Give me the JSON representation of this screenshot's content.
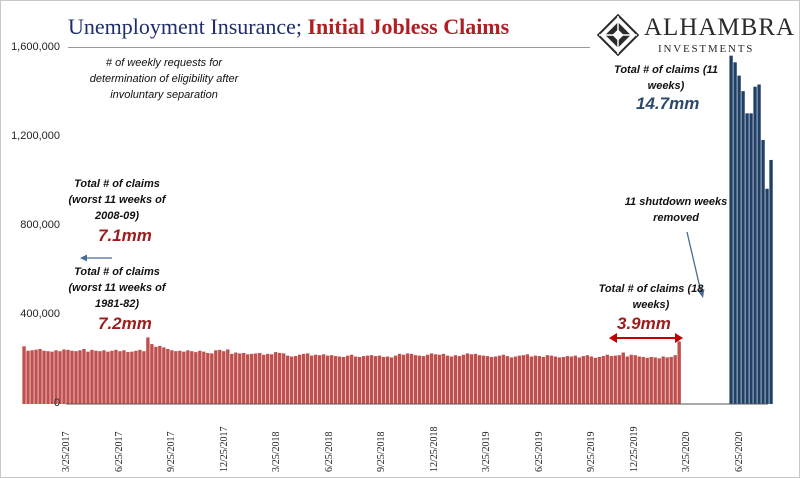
{
  "header": {
    "title_part1": "Unemployment Insurance; ",
    "title_part2": "Initial Jobless Claims",
    "logo_name": "ALHAMBRA",
    "logo_sub": "INVESTMENTS"
  },
  "annotations": {
    "description": "# of weekly requests for determination of eligibility after involuntary separation",
    "total_2008_label": "Total # of claims (worst 11 weeks of 2008-09)",
    "total_2008_value": "7.1mm",
    "total_1981_label": "Total # of claims (worst 11 weeks of 1981-82)",
    "total_1981_value": "7.2mm",
    "total_18w_label": "Total # of claims (18 weeks)",
    "total_18w_value": "3.9mm",
    "shutdown_removed": "11 shutdown weeks removed",
    "total_11w_label": "Total # of claims (11 weeks)",
    "total_11w_value": "14.7mm"
  },
  "colors": {
    "title_blue": "#1f2d6b",
    "title_red": "#b01f24",
    "bar_red": "#c0504d",
    "bar_blue": "#1f3f66",
    "annotation_red": "#9c1d1d",
    "annotation_blue": "#2b4a6e",
    "arrow_blue": "#4a6d96"
  },
  "chart_data": {
    "type": "bar",
    "ylim": [
      0,
      1600000
    ],
    "yticks": [
      {
        "v": 0,
        "label": "0"
      },
      {
        "v": 400000,
        "label": "400,000"
      },
      {
        "v": 800000,
        "label": "800,000"
      },
      {
        "v": 1200000,
        "label": "1,200,000"
      },
      {
        "v": 1600000,
        "label": "1,600,000"
      }
    ],
    "xticks": [
      "3/25/2017",
      "6/25/2017",
      "9/25/2017",
      "12/25/2017",
      "3/25/2018",
      "6/25/2018",
      "9/25/2018",
      "12/25/2018",
      "3/25/2019",
      "6/25/2019",
      "9/25/2019",
      "12/25/2019",
      "3/25/2020",
      "6/25/2020"
    ],
    "series": [
      {
        "color": "#c0504d",
        "start": "2017-01-07",
        "values": [
          260000,
          240000,
          242000,
          245000,
          248000,
          240000,
          238000,
          236000,
          242000,
          238000,
          246000,
          244000,
          240000,
          238000,
          242000,
          248000,
          236000,
          244000,
          240000,
          238000,
          242000,
          236000,
          240000,
          244000,
          238000,
          242000,
          234000,
          236000,
          240000,
          244000,
          238000,
          300000,
          270000,
          258000,
          262000,
          255000,
          248000,
          242000,
          238000,
          240000,
          236000,
          242000,
          238000,
          234000,
          240000,
          236000,
          230000,
          228000,
          242000,
          244000,
          238000,
          246000,
          226000,
          232000,
          228000,
          230000,
          224000,
          226000,
          228000,
          230000,
          222000,
          226000,
          224000,
          234000,
          230000,
          228000,
          218000,
          214000,
          216000,
          222000,
          226000,
          228000,
          218000,
          222000,
          220000,
          224000,
          218000,
          220000,
          216000,
          214000,
          212000,
          218000,
          222000,
          214000,
          212000,
          216000,
          218000,
          220000,
          216000,
          218000,
          212000,
          214000,
          210000,
          218000,
          226000,
          222000,
          228000,
          226000,
          220000,
          218000,
          216000,
          222000,
          228000,
          224000,
          222000,
          226000,
          218000,
          214000,
          220000,
          216000,
          222000,
          228000,
          224000,
          226000,
          220000,
          218000,
          216000,
          212000,
          214000,
          218000,
          222000,
          216000,
          210000,
          214000,
          218000,
          220000,
          224000,
          214000,
          218000,
          216000,
          212000,
          220000,
          218000,
          214000,
          210000,
          212000,
          216000,
          214000,
          218000,
          210000,
          216000,
          220000,
          214000,
          208000,
          212000,
          216000,
          222000,
          216000,
          218000,
          220000,
          232000,
          214000,
          222000,
          220000,
          214000,
          212000,
          208000,
          212000,
          210000,
          206000,
          214000,
          210000,
          212000,
          220000,
          282000
        ]
      },
      {
        "color": "#1f3f66",
        "start": "2020-05-30",
        "values": [
          1570000,
          1540000,
          1480000,
          1410000,
          1310000,
          1310000,
          1430000,
          1440000,
          1190000,
          970000,
          1100000
        ]
      }
    ]
  }
}
